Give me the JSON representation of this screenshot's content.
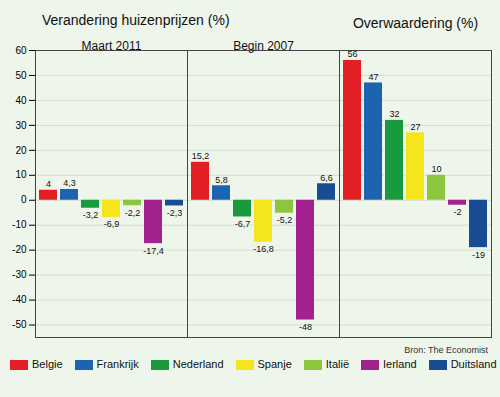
{
  "chart_data": {
    "type": "bar",
    "title": "Verandering huizenprijzen (%)",
    "caption": "Bron: The Economist",
    "categories": [
      "Maart 2011",
      "Begin 2007",
      "Overwaardering (%)"
    ],
    "series": [
      {
        "name": "Belgie",
        "color": "#e31e24",
        "values": [
          4,
          15.2,
          56
        ],
        "value_labels": [
          "4",
          "15,2",
          "56"
        ]
      },
      {
        "name": "Frankrijk",
        "color": "#1c64b0",
        "values": [
          4.3,
          5.8,
          47
        ],
        "value_labels": [
          "4,3",
          "5,8",
          "47"
        ]
      },
      {
        "name": "Nederland",
        "color": "#1a9a3e",
        "values": [
          -3.2,
          -6.7,
          32
        ],
        "value_labels": [
          "-3,2",
          "-6,7",
          "32"
        ]
      },
      {
        "name": "Spanje",
        "color": "#f4e51d",
        "values": [
          -6.9,
          -16.8,
          27
        ],
        "value_labels": [
          "-6,9",
          "-16,8",
          "27"
        ]
      },
      {
        "name": "Italië",
        "color": "#8cc63f",
        "values": [
          -2.2,
          -5.2,
          10
        ],
        "value_labels": [
          "-2,2",
          "-5,2",
          "10"
        ]
      },
      {
        "name": "Ierland",
        "color": "#a3228d",
        "values": [
          -17.4,
          -48,
          -2
        ],
        "value_labels": [
          "-17,4",
          "-48",
          "-2"
        ]
      },
      {
        "name": "Duitsland",
        "color": "#1a4c94",
        "values": [
          -2.3,
          6.6,
          -19
        ],
        "value_labels": [
          "-2,3",
          "6,6",
          "-19"
        ]
      }
    ],
    "ylim": [
      -55,
      60
    ],
    "yticks": [
      -50,
      -40,
      -30,
      -20,
      -10,
      0,
      10,
      20,
      30,
      40,
      50,
      60
    ],
    "grid": true,
    "data_labels": true,
    "legend": "bottom"
  }
}
